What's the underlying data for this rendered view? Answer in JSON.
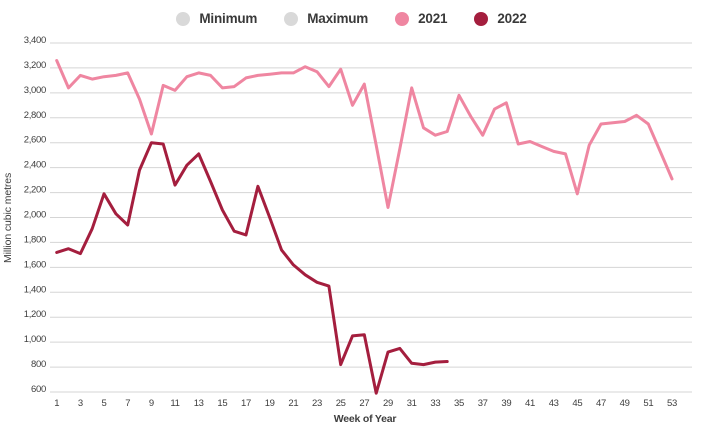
{
  "legend": {
    "items": [
      {
        "label": "Minimum",
        "color": "#D9D9D9",
        "active": false
      },
      {
        "label": "Maximum",
        "color": "#D9D9D9",
        "active": false
      },
      {
        "label": "2021",
        "color": "#EF86A1",
        "active": true
      },
      {
        "label": "2022",
        "color": "#A41E3E",
        "active": true
      }
    ]
  },
  "colors": {
    "series_2021": "#EF86A1",
    "series_2022": "#A41E3E",
    "inactive_legend": "#D9D9D9",
    "gridline": "#D5D5D5",
    "axis_text": "#3E3E3E",
    "background": "#FFFFFF"
  },
  "chart_data": {
    "type": "line",
    "title": "",
    "xlabel": "Week of Year",
    "ylabel": "Million cubic metres",
    "ylim": [
      600,
      3400
    ],
    "xlim": [
      1,
      53
    ],
    "grid": "horizontal",
    "legend_position": "top-center",
    "yticks": [
      {
        "value": 3400,
        "label": "3,400"
      },
      {
        "value": 3200,
        "label": "3,200"
      },
      {
        "value": 3000,
        "label": "3,000"
      },
      {
        "value": 2800,
        "label": "2,800"
      },
      {
        "value": 2600,
        "label": "2,600"
      },
      {
        "value": 2400,
        "label": "2,400"
      },
      {
        "value": 2200,
        "label": "2,200"
      },
      {
        "value": 2000,
        "label": "2,000"
      },
      {
        "value": 1800,
        "label": "1,800"
      },
      {
        "value": 1600,
        "label": "1,600"
      },
      {
        "value": 1400,
        "label": "1,400"
      },
      {
        "value": 1200,
        "label": "1,200"
      },
      {
        "value": 1000,
        "label": "1,000"
      },
      {
        "value": 800,
        "label": "800"
      },
      {
        "value": 600,
        "label": "600"
      }
    ],
    "xticks": [
      "1",
      "3",
      "5",
      "7",
      "9",
      "11",
      "13",
      "15",
      "17",
      "19",
      "21",
      "23",
      "25",
      "27",
      "29",
      "31",
      "33",
      "35",
      "37",
      "39",
      "41",
      "43",
      "45",
      "47",
      "49",
      "51",
      "53"
    ],
    "series": [
      {
        "name": "2021",
        "color": "#EF86A1",
        "start_week": 1,
        "values": [
          3260,
          3040,
          3140,
          3110,
          3130,
          3140,
          3160,
          2950,
          2670,
          3060,
          3020,
          3130,
          3160,
          3140,
          3040,
          3050,
          3120,
          3140,
          3150,
          3160,
          3160,
          3210,
          3170,
          3050,
          3190,
          2900,
          3070,
          2580,
          2080,
          2550,
          3040,
          2720,
          2660,
          2690,
          2980,
          2810,
          2660,
          2870,
          2920,
          2590,
          2610,
          2570,
          2530,
          2510,
          2190,
          2580,
          2750,
          2760,
          2770,
          2820,
          2750,
          2530,
          2310
        ]
      },
      {
        "name": "2022",
        "color": "#A41E3E",
        "start_week": 1,
        "values": [
          1720,
          1750,
          1710,
          1910,
          2190,
          2030,
          1940,
          2380,
          2600,
          2590,
          2260,
          2420,
          2510,
          2290,
          2060,
          1890,
          1860,
          2250,
          2000,
          1740,
          1620,
          1540,
          1480,
          1450,
          820,
          1050,
          1060,
          590,
          920,
          950,
          830,
          820,
          840,
          845
        ]
      }
    ]
  }
}
